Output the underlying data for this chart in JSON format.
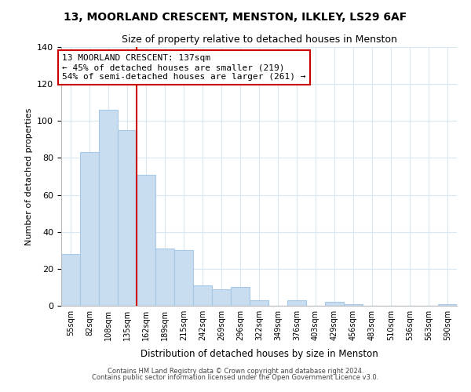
{
  "title1": "13, MOORLAND CRESCENT, MENSTON, ILKLEY, LS29 6AF",
  "title2": "Size of property relative to detached houses in Menston",
  "xlabel": "Distribution of detached houses by size in Menston",
  "ylabel": "Number of detached properties",
  "bar_labels": [
    "55sqm",
    "82sqm",
    "108sqm",
    "135sqm",
    "162sqm",
    "189sqm",
    "215sqm",
    "242sqm",
    "269sqm",
    "296sqm",
    "322sqm",
    "349sqm",
    "376sqm",
    "403sqm",
    "429sqm",
    "456sqm",
    "483sqm",
    "510sqm",
    "536sqm",
    "563sqm",
    "590sqm"
  ],
  "bar_values": [
    28,
    83,
    106,
    95,
    71,
    31,
    30,
    11,
    9,
    10,
    3,
    0,
    3,
    0,
    2,
    1,
    0,
    0,
    0,
    0,
    1
  ],
  "bar_color": "#c8ddf0",
  "bar_edge_color": "#a8c8e8",
  "vline_color": "#cc0000",
  "annotation_line1": "13 MOORLAND CRESCENT: 137sqm",
  "annotation_line2": "← 45% of detached houses are smaller (219)",
  "annotation_line3": "54% of semi-detached houses are larger (261) →",
  "annotation_box_edge_color": "#cc0000",
  "annotation_box_fill": "#ffffff",
  "ylim": [
    0,
    140
  ],
  "yticks": [
    0,
    20,
    40,
    60,
    80,
    100,
    120,
    140
  ],
  "footer1": "Contains HM Land Registry data © Crown copyright and database right 2024.",
  "footer2": "Contains public sector information licensed under the Open Government Licence v3.0.",
  "bg_color": "#ffffff",
  "grid_color": "#d8e8f0"
}
